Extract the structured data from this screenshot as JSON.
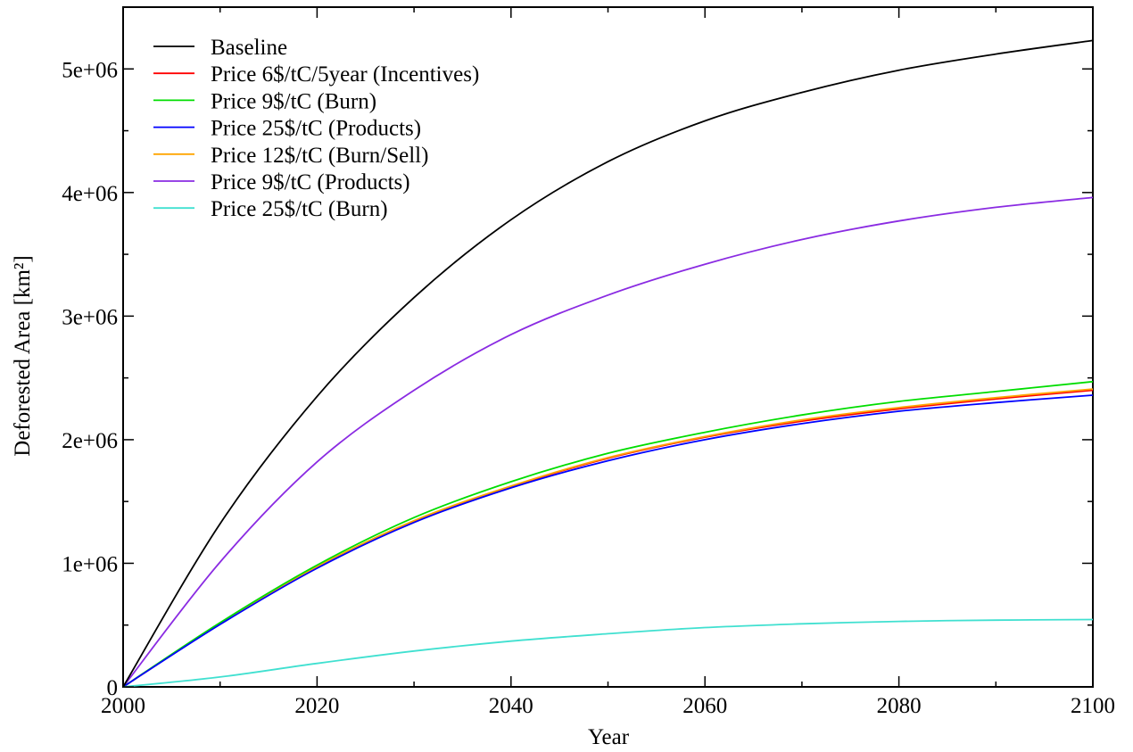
{
  "chart_data": {
    "type": "line",
    "title": "",
    "xlabel": "Year",
    "ylabel": "Deforested Area [km²]",
    "xlim": [
      2000,
      2100
    ],
    "ylim": [
      0,
      5500000
    ],
    "x_ticks": [
      2000,
      2020,
      2040,
      2060,
      2080,
      2100
    ],
    "x_tick_labels": [
      "2000",
      "2020",
      "2040",
      "2060",
      "2080",
      "2100"
    ],
    "y_ticks": [
      0,
      1000000,
      2000000,
      3000000,
      4000000,
      5000000
    ],
    "y_tick_labels": [
      "0",
      "1e+06",
      "2e+06",
      "3e+06",
      "4e+06",
      "5e+06"
    ],
    "grid": false,
    "legend_position": "top-left",
    "x": [
      2000,
      2010,
      2020,
      2030,
      2040,
      2050,
      2060,
      2070,
      2080,
      2090,
      2100
    ],
    "series": [
      {
        "name": "Baseline",
        "color": "#000000",
        "values": [
          0,
          1320000,
          2350000,
          3150000,
          3780000,
          4250000,
          4580000,
          4810000,
          4990000,
          5120000,
          5230000
        ]
      },
      {
        "name": "Price 6$/tC/5year (Incentives)",
        "color": "#ff0000",
        "values": [
          0,
          510000,
          970000,
          1340000,
          1620000,
          1850000,
          2020000,
          2150000,
          2250000,
          2330000,
          2400000
        ]
      },
      {
        "name": "Price 9$/tC (Burn)",
        "color": "#00dd00",
        "values": [
          0,
          520000,
          985000,
          1370000,
          1660000,
          1890000,
          2060000,
          2200000,
          2310000,
          2390000,
          2470000
        ]
      },
      {
        "name": "Price 25$/tC (Products)",
        "color": "#0000ff",
        "values": [
          0,
          505000,
          960000,
          1330000,
          1610000,
          1830000,
          2000000,
          2130000,
          2230000,
          2300000,
          2360000
        ]
      },
      {
        "name": "Price 12$/tC (Burn/Sell)",
        "color": "#ffa500",
        "values": [
          0,
          512000,
          972000,
          1345000,
          1625000,
          1855000,
          2025000,
          2160000,
          2260000,
          2340000,
          2410000
        ]
      },
      {
        "name": "Price 9$/tC (Products)",
        "color": "#8a2be2",
        "values": [
          0,
          1010000,
          1820000,
          2400000,
          2850000,
          3170000,
          3420000,
          3620000,
          3770000,
          3880000,
          3960000
        ]
      },
      {
        "name": "Price 25$/tC (Burn)",
        "color": "#40e0d0",
        "values": [
          0,
          80000,
          190000,
          290000,
          370000,
          430000,
          480000,
          510000,
          530000,
          540000,
          545000
        ]
      }
    ]
  }
}
